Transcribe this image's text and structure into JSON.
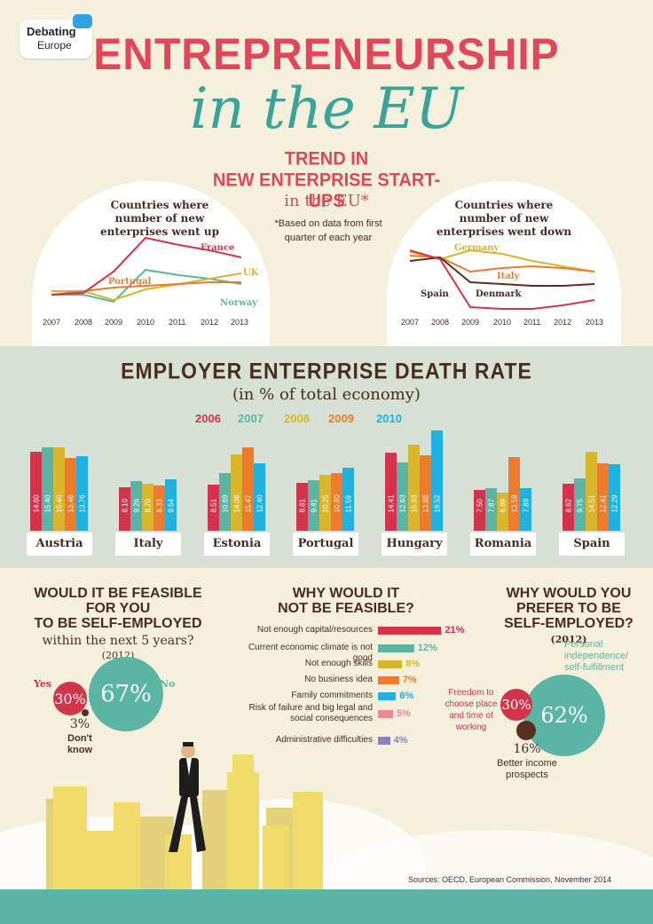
{
  "logo": {
    "line1": "Debating",
    "line2": "Europe"
  },
  "title": {
    "line1": "ENTREPRENEURSHIP",
    "line2": "in the EU"
  },
  "trend": {
    "title_line1": "TREND IN",
    "title_line2": "NEW ENTERPRISE START-UPS",
    "subtitle": "in the EU*",
    "note": "*Based on data from first quarter of each year",
    "years": [
      "2007",
      "2008",
      "2009",
      "2010",
      "2011",
      "2012",
      "2013"
    ],
    "up_label": "Countries where number of new enterprises went up",
    "down_label": "Countries where number of new enterprises went down",
    "up_series": [
      {
        "name": "France",
        "color": "#d2344c"
      },
      {
        "name": "Portugal",
        "color": "#e67c2e"
      },
      {
        "name": "UK",
        "color": "#d8b52a"
      },
      {
        "name": "Norway",
        "color": "#5ab5a4"
      }
    ],
    "down_series": [
      {
        "name": "Germany",
        "color": "#d8b52a"
      },
      {
        "name": "Italy",
        "color": "#e67c2e"
      },
      {
        "name": "Denmark",
        "color": "#5a2e22"
      },
      {
        "name": "Spain",
        "color": "#d2344c"
      }
    ]
  },
  "chart_data": {
    "type": "bar",
    "title": "EMPLOYER ENTERPRISE DEATH RATE",
    "subtitle": "(in % of total economy)",
    "categories": [
      "Austria",
      "Italy",
      "Estonia",
      "Portugal",
      "Hungary",
      "Romania",
      "Spain"
    ],
    "series": [
      {
        "name": "2006",
        "color": "#d2344c",
        "values": [
          14.6,
          8.1,
          8.51,
          8.81,
          14.41,
          7.5,
          8.62
        ],
        "labels": [
          "14.60",
          "8.10",
          "8.51",
          "8.81",
          "14.41",
          "7.50",
          "8.62"
        ]
      },
      {
        "name": "2007",
        "color": "#5ab5a4",
        "values": [
          15.4,
          9.26,
          10.69,
          9.41,
          12.63,
          7.87,
          9.75
        ],
        "labels": [
          "15.40",
          "9.26",
          "10.69",
          "9.41",
          "12.63",
          "7.87",
          "9.75"
        ]
      },
      {
        "name": "2008",
        "color": "#d8b52a",
        "values": [
          15.4,
          8.7,
          14.08,
          10.25,
          15.93,
          6.99,
          14.51
        ],
        "labels": [
          "15.40",
          "8.70",
          "14.08",
          "10.25",
          "15.93",
          "6.99",
          "14.51"
        ]
      },
      {
        "name": "2009",
        "color": "#ee7b2c",
        "values": [
          13.48,
          8.33,
          15.47,
          10.6,
          13.88,
          13.59,
          12.41
        ],
        "labels": [
          "13.48",
          "8.33",
          "15.47",
          "10.60",
          "13.88",
          "13.59",
          "12.41"
        ]
      },
      {
        "name": "2010",
        "color": "#1fb2e0",
        "values": [
          13.76,
          9.54,
          12.4,
          11.59,
          18.52,
          7.89,
          12.29
        ],
        "labels": [
          "13.76",
          "9.54",
          "12.40",
          "11.59",
          "18.52",
          "7.89",
          "12.29"
        ]
      }
    ]
  },
  "feasible": {
    "title_line1": "WOULD IT BE FEASIBLE",
    "title_line2": "FOR YOU",
    "title_line3": "TO BE SELF-EMPLOYED",
    "subtitle": "within the next 5 years?",
    "year": "(2012)",
    "yes_label": "Yes",
    "yes_value": "30%",
    "no_label": "No",
    "no_value": "67%",
    "dk_value": "3%",
    "dk_label": "Don't know",
    "colors": {
      "yes": "#d2344c",
      "no": "#5ab5a4",
      "dk": "#5a2e22"
    }
  },
  "why_not": {
    "title_line1": "WHY WOULD IT",
    "title_line2": "NOT BE FEASIBLE?",
    "items": [
      {
        "label": "Not enough capital/resources",
        "value": "21%",
        "pct": 21,
        "color": "#d2344c"
      },
      {
        "label": "Current economic climate is not good",
        "value": "12%",
        "pct": 12,
        "color": "#5ab5a4"
      },
      {
        "label": "Not enough skills",
        "value": "8%",
        "pct": 8,
        "color": "#d8b52a"
      },
      {
        "label": "No business idea",
        "value": "7%",
        "pct": 7,
        "color": "#ee7b2c"
      },
      {
        "label": "Family commitments",
        "value": "6%",
        "pct": 6,
        "color": "#1fb2e0"
      },
      {
        "label": "Risk of failure and big legal and social consequences",
        "value": "5%",
        "pct": 5,
        "color": "#ec8797"
      },
      {
        "label": "Administrative difficulties",
        "value": "4%",
        "pct": 4,
        "color": "#8a80c4"
      }
    ]
  },
  "why_prefer": {
    "title_line1": "WHY WOULD YOU",
    "title_line2": "PREFER TO BE",
    "title_line3": "SELF-EMPLOYED?",
    "year": "(2012)",
    "main_value": "62%",
    "main_label": "Personal independence/ self-fulfillment",
    "freedom_value": "30%",
    "freedom_label": "Freedom to choose place and time of working",
    "income_value": "16%",
    "income_label": "Better income prospects",
    "colors": {
      "main": "#5ab5a4",
      "freedom": "#d2344c",
      "income": "#5a2e22"
    }
  },
  "sources": "Sources: OECD, European Commission, November 2014"
}
